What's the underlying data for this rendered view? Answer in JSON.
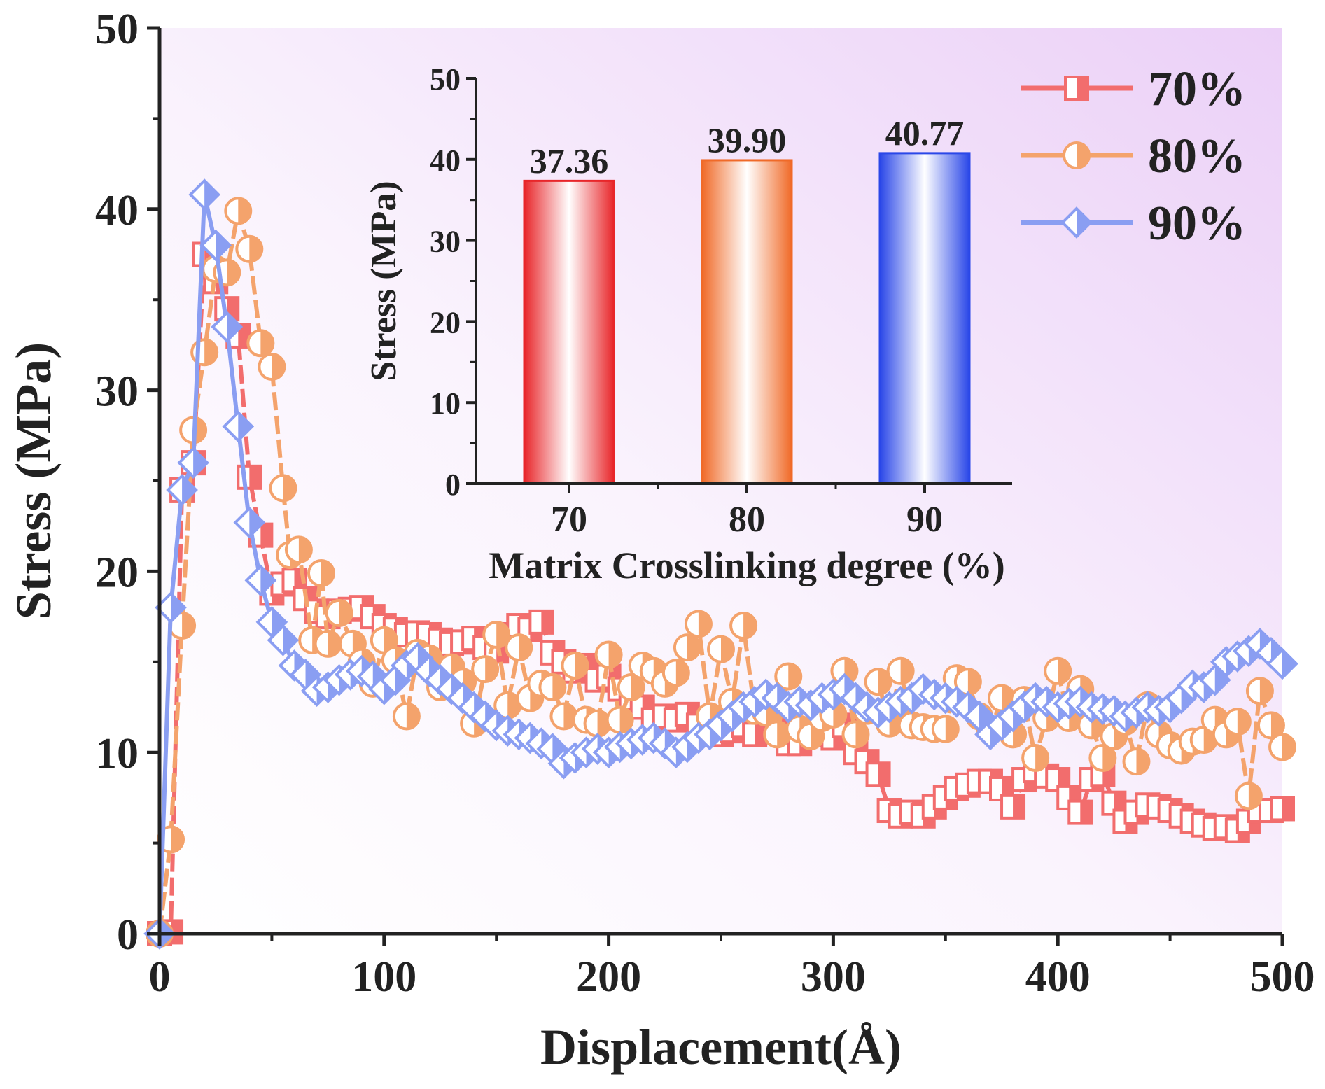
{
  "chart_data": [
    {
      "type": "line",
      "title": "",
      "xlabel": "Displacement(Å)",
      "ylabel": "Stress (MPa)",
      "xlim": [
        0,
        500
      ],
      "ylim": [
        0,
        50
      ],
      "x_ticks": [
        "0",
        "100",
        "200",
        "300",
        "400",
        "500"
      ],
      "y_ticks": [
        "0",
        "10",
        "20",
        "30",
        "40",
        "50"
      ],
      "legend_position": "top-right",
      "colors": {
        "70%": "#f26d6d",
        "80%": "#f4a36c",
        "90%": "#8a9ef2"
      },
      "series": [
        {
          "name": "70%",
          "marker": "square",
          "x": [
            0,
            5,
            10,
            15,
            20,
            25,
            30,
            35,
            40,
            45,
            50,
            55,
            60,
            65,
            70,
            75,
            80,
            85,
            90,
            95,
            100,
            105,
            110,
            115,
            120,
            125,
            130,
            135,
            140,
            145,
            150,
            155,
            160,
            165,
            170,
            175,
            180,
            185,
            190,
            195,
            200,
            205,
            210,
            215,
            220,
            225,
            230,
            235,
            240,
            245,
            250,
            255,
            260,
            265,
            270,
            275,
            280,
            285,
            290,
            295,
            300,
            305,
            310,
            315,
            320,
            325,
            330,
            335,
            340,
            345,
            350,
            355,
            360,
            365,
            370,
            375,
            380,
            385,
            390,
            395,
            400,
            405,
            410,
            415,
            420,
            425,
            430,
            435,
            440,
            445,
            450,
            455,
            460,
            465,
            470,
            475,
            480,
            485,
            490,
            495,
            500
          ],
          "y": [
            0,
            0.1,
            24.5,
            26,
            37.5,
            36,
            34.5,
            33,
            25.2,
            22,
            18.8,
            19.3,
            19.5,
            18.5,
            17.8,
            17.5,
            17.8,
            17.9,
            18,
            17.5,
            17,
            16.8,
            16.5,
            16.6,
            16.5,
            16.2,
            16,
            16.1,
            16.3,
            15.8,
            15.6,
            16.5,
            17,
            16.8,
            17.2,
            15.5,
            15,
            14.5,
            14.8,
            14,
            14.2,
            13.5,
            13,
            12.5,
            11.8,
            12,
            11.8,
            12.1,
            11.5,
            11.3,
            11,
            11.2,
            11.5,
            11,
            12.5,
            11.8,
            10.5,
            10.5,
            11.2,
            11,
            10.8,
            11.5,
            10,
            9.5,
            8.8,
            6.8,
            6.5,
            6.7,
            6.5,
            7,
            7.5,
            8,
            8.2,
            8.4,
            8.4,
            8,
            7,
            8.5,
            9,
            8.7,
            8.5,
            7.5,
            6.7,
            8.5,
            8.8,
            7.2,
            6.2,
            6.7,
            7.1,
            7,
            6.8,
            6.5,
            6.2,
            6,
            5.8,
            5.9,
            5.7,
            6.2,
            6.8,
            6.8,
            6.9
          ]
        },
        {
          "name": "80%",
          "marker": "circle",
          "x": [
            0,
            5,
            10,
            15,
            20,
            25,
            30,
            35,
            40,
            45,
            50,
            55,
            58,
            62,
            68,
            72,
            75,
            80,
            86,
            90,
            95,
            100,
            105,
            110,
            115,
            120,
            125,
            130,
            135,
            140,
            145,
            150,
            155,
            160,
            165,
            170,
            175,
            180,
            185,
            190,
            195,
            200,
            205,
            210,
            215,
            220,
            225,
            230,
            235,
            240,
            245,
            250,
            255,
            260,
            265,
            270,
            275,
            280,
            285,
            290,
            295,
            300,
            305,
            310,
            315,
            320,
            325,
            330,
            335,
            340,
            345,
            350,
            355,
            360,
            365,
            370,
            375,
            380,
            385,
            390,
            395,
            400,
            405,
            410,
            415,
            420,
            425,
            430,
            435,
            440,
            445,
            450,
            455,
            460,
            465,
            470,
            475,
            480,
            485,
            490,
            495,
            500
          ],
          "y": [
            0,
            5.2,
            17,
            27.8,
            32.1,
            36.7,
            36.5,
            39.9,
            37.8,
            32.6,
            31.3,
            24.6,
            20.9,
            21.2,
            16.2,
            19.9,
            16,
            17.7,
            16,
            15,
            13.8,
            16.2,
            15.1,
            12,
            15.5,
            15.2,
            13.6,
            14.7,
            13.9,
            11.6,
            14.6,
            16.5,
            12.6,
            15.8,
            13,
            13.8,
            13.6,
            12,
            14.8,
            11.8,
            11.6,
            15.4,
            11.8,
            13.6,
            14.8,
            14.5,
            13.8,
            14.4,
            15.8,
            17.1,
            12,
            15.7,
            12.8,
            17,
            12.3,
            12.2,
            11,
            14.2,
            11.3,
            10.9,
            11.9,
            12.1,
            14.5,
            11,
            12.3,
            13.9,
            11.6,
            14.5,
            11.5,
            11.4,
            11.3,
            11.3,
            14.1,
            13.9,
            12,
            11.2,
            13,
            11,
            12.9,
            9.7,
            11.9,
            14.5,
            11.9,
            13.5,
            11.5,
            9.7,
            10.9,
            11.7,
            9.5,
            12.6,
            11,
            10.4,
            10.1,
            10.6,
            10.7,
            11.8,
            11,
            11.7,
            7.6,
            13.4,
            11.5,
            10.3
          ]
        },
        {
          "name": "90%",
          "marker": "diamond",
          "x": [
            0,
            5,
            10,
            15,
            20,
            25,
            30,
            35,
            40,
            45,
            50,
            55,
            60,
            65,
            70,
            75,
            80,
            85,
            90,
            95,
            100,
            105,
            110,
            115,
            120,
            125,
            130,
            135,
            140,
            145,
            150,
            155,
            160,
            165,
            170,
            175,
            180,
            185,
            190,
            195,
            200,
            205,
            210,
            215,
            220,
            225,
            230,
            235,
            240,
            245,
            250,
            255,
            260,
            265,
            270,
            275,
            280,
            285,
            290,
            295,
            300,
            305,
            310,
            315,
            320,
            325,
            330,
            335,
            340,
            345,
            350,
            355,
            360,
            365,
            370,
            375,
            380,
            385,
            390,
            395,
            400,
            405,
            410,
            415,
            420,
            425,
            430,
            435,
            440,
            445,
            450,
            455,
            460,
            465,
            470,
            475,
            480,
            485,
            490,
            495,
            500
          ],
          "y": [
            0,
            18,
            24.5,
            26,
            40.8,
            38,
            33.5,
            28,
            22.7,
            19.5,
            17.2,
            16.2,
            14.8,
            14.3,
            13.4,
            13.6,
            14,
            14.3,
            14.5,
            14.2,
            13.5,
            14,
            14.8,
            15.2,
            14.5,
            14,
            13.5,
            13,
            12.5,
            12,
            11.5,
            11.2,
            11,
            10.8,
            10.5,
            10.2,
            9.4,
            9.7,
            10,
            10.2,
            10,
            10.3,
            10.5,
            10.7,
            10.8,
            10.5,
            10,
            10.3,
            10.8,
            11,
            11.5,
            12,
            12.5,
            12.8,
            13.2,
            13,
            12.5,
            12.8,
            12.6,
            13,
            13.2,
            13.5,
            13,
            12.5,
            12.2,
            12.5,
            12.8,
            13,
            13.5,
            13.2,
            13,
            12.8,
            12.5,
            12,
            11,
            11.5,
            12,
            12.5,
            13,
            12.8,
            12.5,
            12.7,
            12.8,
            12.5,
            12.4,
            12.3,
            12,
            12.2,
            12.5,
            12.3,
            12.5,
            13,
            13.7,
            13.6,
            14,
            15,
            15.3,
            15.6,
            16,
            15.5,
            14.9
          ]
        }
      ]
    },
    {
      "type": "bar",
      "title": "",
      "xlabel": "Matrix Crosslinking degree (%)",
      "ylabel": "Stress (MPa)",
      "ylim": [
        0,
        50
      ],
      "y_ticks": [
        "0",
        "10",
        "20",
        "30",
        "40",
        "50"
      ],
      "categories": [
        "70",
        "80",
        "90"
      ],
      "values": [
        37.36,
        39.9,
        40.77
      ],
      "value_labels": [
        "37.36",
        "39.90",
        "40.77"
      ],
      "colors": [
        "#e8262a",
        "#f06a28",
        "#2a47e8"
      ]
    }
  ]
}
